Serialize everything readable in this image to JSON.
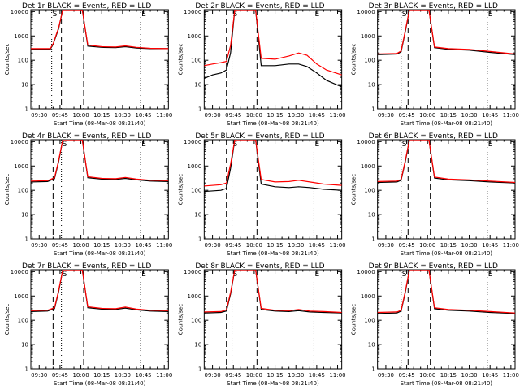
{
  "figure": {
    "rows": 3,
    "cols": 3,
    "colors": {
      "events": "#000000",
      "lld": "#ff0000",
      "background": "#ffffff"
    }
  },
  "chart_data": [
    {
      "type": "line",
      "title": "Det 1r BLACK = Events, RED = LLD",
      "xlabel": "Start Time (08-Mar-08 08:21:40)",
      "ylabel": "Counts/sec",
      "ytick_labels": [
        "1",
        "10",
        "100",
        "1000",
        "10000"
      ],
      "xtick_labels": [
        "09:30",
        "09:45",
        "10:00",
        "10:15",
        "10:30",
        "10:45",
        "11:00"
      ],
      "xlim": [
        "09:24",
        "11:03"
      ],
      "ylim": [
        1,
        12000
      ],
      "yscale": "log",
      "vlines_dashed": [
        "09:46",
        "10:02"
      ],
      "vlines_dotted": [
        "09:39",
        "10:43"
      ],
      "markers": [
        {
          "letter": "S",
          "x": "09:39"
        },
        {
          "letter": "E",
          "x": "10:43"
        }
      ],
      "series": [
        {
          "name": "Events",
          "color": "#000000",
          "x": [
            "09:24",
            "09:38",
            "09:40",
            "09:44",
            "09:47",
            "10:01",
            "10:05",
            "10:15",
            "10:25",
            "10:32",
            "10:40",
            "10:50",
            "11:03"
          ],
          "y": [
            280,
            280,
            450,
            2000,
            12000,
            12000,
            380,
            340,
            330,
            360,
            320,
            300,
            300
          ]
        },
        {
          "name": "LLD",
          "color": "#ff0000",
          "x": [
            "09:24",
            "09:38",
            "09:40",
            "09:44",
            "09:47",
            "10:01",
            "10:05",
            "10:15",
            "10:25",
            "10:32",
            "10:40",
            "10:50",
            "11:03"
          ],
          "y": [
            300,
            300,
            480,
            2200,
            12000,
            12000,
            420,
            360,
            350,
            390,
            340,
            310,
            300
          ]
        }
      ]
    },
    {
      "type": "line",
      "title": "Det 2r BLACK = Events, RED = LLD",
      "xlabel": "Start Time (08-Mar-08 08:21:40)",
      "ylabel": "Counts/sec",
      "ytick_labels": [
        "1",
        "10",
        "100",
        "1000",
        "10000"
      ],
      "xtick_labels": [
        "09:30",
        "09:45",
        "10:00",
        "10:15",
        "10:30",
        "10:45",
        "11:00"
      ],
      "xlim": [
        "09:24",
        "11:03"
      ],
      "ylim": [
        1,
        12000
      ],
      "yscale": "log",
      "vlines_dashed": [
        "09:40",
        "10:02"
      ],
      "vlines_dotted": [
        "09:44",
        "10:43"
      ],
      "markers": [
        {
          "letter": "S",
          "x": "09:44"
        },
        {
          "letter": "E",
          "x": "10:43"
        }
      ],
      "series": [
        {
          "name": "Events",
          "color": "#000000",
          "x": [
            "09:24",
            "09:30",
            "09:36",
            "09:40",
            "09:43",
            "09:46",
            "10:01",
            "10:05",
            "10:15",
            "10:25",
            "10:32",
            "10:38",
            "10:45",
            "10:52",
            "11:03"
          ],
          "y": [
            18,
            25,
            30,
            40,
            200,
            12000,
            12000,
            60,
            60,
            70,
            70,
            55,
            30,
            15,
            8
          ]
        },
        {
          "name": "LLD",
          "color": "#ff0000",
          "x": [
            "09:24",
            "09:30",
            "09:36",
            "09:40",
            "09:43",
            "09:46",
            "10:01",
            "10:05",
            "10:15",
            "10:25",
            "10:32",
            "10:38",
            "10:45",
            "10:52",
            "11:03"
          ],
          "y": [
            60,
            70,
            80,
            90,
            400,
            12000,
            12000,
            120,
            110,
            150,
            200,
            160,
            70,
            40,
            25
          ]
        }
      ]
    },
    {
      "type": "line",
      "title": "Det 3r BLACK = Events, RED = LLD",
      "xlabel": "Start Time (08-Mar-08 08:21:40)",
      "ylabel": "Counts/sec",
      "ytick_labels": [
        "1",
        "10",
        "100",
        "1000",
        "10000"
      ],
      "xtick_labels": [
        "09:30",
        "09:45",
        "10:00",
        "10:15",
        "10:30",
        "10:45",
        "11:00"
      ],
      "xlim": [
        "09:24",
        "11:03"
      ],
      "ylim": [
        1,
        12000
      ],
      "yscale": "log",
      "vlines_dashed": [
        "09:46",
        "10:02"
      ],
      "vlines_dotted": [
        "09:41",
        "10:43"
      ],
      "markers": [
        {
          "letter": "S",
          "x": "09:41"
        },
        {
          "letter": "E",
          "x": "10:43"
        }
      ],
      "series": [
        {
          "name": "Events",
          "color": "#000000",
          "x": [
            "09:24",
            "09:38",
            "09:41",
            "09:44",
            "09:47",
            "10:01",
            "10:05",
            "10:15",
            "10:30",
            "10:45",
            "11:03"
          ],
          "y": [
            170,
            180,
            220,
            1500,
            12000,
            12000,
            330,
            280,
            260,
            210,
            170
          ]
        },
        {
          "name": "LLD",
          "color": "#ff0000",
          "x": [
            "09:24",
            "09:38",
            "09:41",
            "09:44",
            "09:47",
            "10:01",
            "10:05",
            "10:15",
            "10:30",
            "10:45",
            "11:03"
          ],
          "y": [
            180,
            190,
            240,
            1700,
            12000,
            12000,
            350,
            300,
            280,
            230,
            180
          ]
        }
      ]
    },
    {
      "type": "line",
      "title": "Det 4r BLACK = Events, RED = LLD",
      "xlabel": "Start Time (08-Mar-08 08:21:40)",
      "ylabel": "Counts/sec",
      "ytick_labels": [
        "1",
        "10",
        "100",
        "1000",
        "10000"
      ],
      "xtick_labels": [
        "09:30",
        "09:45",
        "10:00",
        "10:15",
        "10:30",
        "10:45",
        "11:00"
      ],
      "xlim": [
        "09:24",
        "11:03"
      ],
      "ylim": [
        1,
        12000
      ],
      "yscale": "log",
      "vlines_dashed": [
        "09:40",
        "10:02"
      ],
      "vlines_dotted": [
        "09:46",
        "10:43"
      ],
      "markers": [
        {
          "letter": "S",
          "x": "09:46"
        },
        {
          "letter": "E",
          "x": "10:43"
        }
      ],
      "series": [
        {
          "name": "Events",
          "color": "#000000",
          "x": [
            "09:24",
            "09:36",
            "09:41",
            "09:44",
            "09:47",
            "10:01",
            "10:05",
            "10:15",
            "10:25",
            "10:32",
            "10:40",
            "10:50",
            "11:03"
          ],
          "y": [
            220,
            230,
            300,
            1500,
            12000,
            12000,
            330,
            290,
            280,
            310,
            270,
            240,
            230
          ]
        },
        {
          "name": "LLD",
          "color": "#ff0000",
          "x": [
            "09:24",
            "09:36",
            "09:41",
            "09:44",
            "09:47",
            "10:01",
            "10:05",
            "10:15",
            "10:25",
            "10:32",
            "10:40",
            "10:50",
            "11:03"
          ],
          "y": [
            240,
            250,
            330,
            1700,
            12000,
            12000,
            360,
            310,
            300,
            340,
            290,
            260,
            250
          ]
        }
      ]
    },
    {
      "type": "line",
      "title": "Det 5r BLACK = Events, RED = LLD",
      "xlabel": "Start Time (08-Mar-08 08:21:40)",
      "ylabel": "Counts/sec",
      "ytick_labels": [
        "1",
        "10",
        "100",
        "1000",
        "10000"
      ],
      "xtick_labels": [
        "09:30",
        "09:45",
        "10:00",
        "10:15",
        "10:30",
        "10:45",
        "11:00"
      ],
      "xlim": [
        "09:24",
        "11:03"
      ],
      "ylim": [
        1,
        12000
      ],
      "yscale": "log",
      "vlines_dashed": [
        "09:40",
        "10:02"
      ],
      "vlines_dotted": [
        "09:44",
        "10:43"
      ],
      "markers": [
        {
          "letter": "S",
          "x": "09:44"
        },
        {
          "letter": "E",
          "x": "10:43"
        }
      ],
      "series": [
        {
          "name": "Events",
          "color": "#000000",
          "x": [
            "09:24",
            "09:36",
            "09:40",
            "09:43",
            "09:46",
            "10:01",
            "10:05",
            "10:15",
            "10:25",
            "10:32",
            "10:40",
            "10:50",
            "11:03"
          ],
          "y": [
            90,
            100,
            120,
            800,
            12000,
            12000,
            180,
            140,
            130,
            140,
            130,
            110,
            100
          ]
        },
        {
          "name": "LLD",
          "color": "#ff0000",
          "x": [
            "09:24",
            "09:36",
            "09:40",
            "09:43",
            "09:46",
            "10:01",
            "10:05",
            "10:15",
            "10:25",
            "10:32",
            "10:40",
            "10:50",
            "11:03"
          ],
          "y": [
            150,
            170,
            200,
            1200,
            12000,
            12000,
            280,
            220,
            230,
            260,
            220,
            180,
            160
          ]
        }
      ]
    },
    {
      "type": "line",
      "title": "Det 6r BLACK = Events, RED = LLD",
      "xlabel": "Start Time (08-Mar-08 08:21:40)",
      "ylabel": "Counts/sec",
      "ytick_labels": [
        "1",
        "10",
        "100",
        "1000",
        "10000"
      ],
      "xtick_labels": [
        "09:30",
        "09:45",
        "10:00",
        "10:15",
        "10:30",
        "10:45",
        "11:00"
      ],
      "xlim": [
        "09:24",
        "11:03"
      ],
      "ylim": [
        1,
        12000
      ],
      "yscale": "log",
      "vlines_dashed": [
        "09:46",
        "10:02"
      ],
      "vlines_dotted": [
        "09:41",
        "10:43"
      ],
      "markers": [
        {
          "letter": "S",
          "x": "09:41"
        },
        {
          "letter": "E",
          "x": "10:43"
        }
      ],
      "series": [
        {
          "name": "Events",
          "color": "#000000",
          "x": [
            "09:24",
            "09:38",
            "09:41",
            "09:44",
            "09:47",
            "10:01",
            "10:05",
            "10:15",
            "10:30",
            "10:45",
            "11:03"
          ],
          "y": [
            210,
            220,
            260,
            1500,
            12000,
            12000,
            320,
            270,
            250,
            220,
            200
          ]
        },
        {
          "name": "LLD",
          "color": "#ff0000",
          "x": [
            "09:24",
            "09:38",
            "09:41",
            "09:44",
            "09:47",
            "10:01",
            "10:05",
            "10:15",
            "10:30",
            "10:45",
            "11:03"
          ],
          "y": [
            230,
            240,
            280,
            1700,
            12000,
            12000,
            350,
            290,
            270,
            240,
            210
          ]
        }
      ]
    },
    {
      "type": "line",
      "title": "Det 7r BLACK = Events, RED = LLD",
      "xlabel": "Start Time (08-Mar-08 08:21:40)",
      "ylabel": "Counts/sec",
      "ytick_labels": [
        "1",
        "10",
        "100",
        "1000",
        "10000"
      ],
      "xtick_labels": [
        "09:30",
        "09:45",
        "10:00",
        "10:15",
        "10:30",
        "10:45",
        "11:00"
      ],
      "xlim": [
        "09:24",
        "11:03"
      ],
      "ylim": [
        1,
        12000
      ],
      "yscale": "log",
      "vlines_dashed": [
        "09:40",
        "10:02"
      ],
      "vlines_dotted": [
        "09:46",
        "10:43"
      ],
      "markers": [
        {
          "letter": "S",
          "x": "09:46"
        },
        {
          "letter": "E",
          "x": "10:43"
        }
      ],
      "series": [
        {
          "name": "Events",
          "color": "#000000",
          "x": [
            "09:24",
            "09:36",
            "09:41",
            "09:44",
            "09:47",
            "10:01",
            "10:05",
            "10:15",
            "10:25",
            "10:32",
            "10:40",
            "10:50",
            "11:03"
          ],
          "y": [
            230,
            240,
            300,
            1500,
            12000,
            12000,
            330,
            290,
            280,
            320,
            270,
            240,
            230
          ]
        },
        {
          "name": "LLD",
          "color": "#ff0000",
          "x": [
            "09:24",
            "09:36",
            "09:41",
            "09:44",
            "09:47",
            "10:01",
            "10:05",
            "10:15",
            "10:25",
            "10:32",
            "10:40",
            "10:50",
            "11:03"
          ],
          "y": [
            250,
            260,
            330,
            1700,
            12000,
            12000,
            360,
            310,
            300,
            350,
            290,
            260,
            250
          ]
        }
      ]
    },
    {
      "type": "line",
      "title": "Det 8r BLACK = Events, RED = LLD",
      "xlabel": "Start Time (08-Mar-08 08:21:40)",
      "ylabel": "Counts/sec",
      "ytick_labels": [
        "1",
        "10",
        "100",
        "1000",
        "10000"
      ],
      "xtick_labels": [
        "09:30",
        "09:45",
        "10:00",
        "10:15",
        "10:30",
        "10:45",
        "11:00"
      ],
      "xlim": [
        "09:24",
        "11:03"
      ],
      "ylim": [
        1,
        12000
      ],
      "yscale": "log",
      "vlines_dashed": [
        "09:40",
        "10:02"
      ],
      "vlines_dotted": [
        "09:44",
        "10:43"
      ],
      "markers": [
        {
          "letter": "S",
          "x": "09:44"
        },
        {
          "letter": "E",
          "x": "10:43"
        }
      ],
      "series": [
        {
          "name": "Events",
          "color": "#000000",
          "x": [
            "09:24",
            "09:36",
            "09:40",
            "09:43",
            "09:46",
            "10:01",
            "10:05",
            "10:15",
            "10:25",
            "10:32",
            "10:40",
            "10:50",
            "11:03"
          ],
          "y": [
            200,
            210,
            240,
            1200,
            12000,
            12000,
            280,
            240,
            230,
            250,
            220,
            210,
            200
          ]
        },
        {
          "name": "LLD",
          "color": "#ff0000",
          "x": [
            "09:24",
            "09:36",
            "09:40",
            "09:43",
            "09:46",
            "10:01",
            "10:05",
            "10:15",
            "10:25",
            "10:32",
            "10:40",
            "10:50",
            "11:03"
          ],
          "y": [
            220,
            230,
            270,
            1400,
            12000,
            12000,
            310,
            260,
            250,
            280,
            240,
            230,
            210
          ]
        }
      ]
    },
    {
      "type": "line",
      "title": "Det 9r BLACK = Events, RED = LLD",
      "xlabel": "Start Time (08-Mar-08 08:21:40)",
      "ylabel": "Counts/sec",
      "ytick_labels": [
        "1",
        "10",
        "100",
        "1000",
        "10000"
      ],
      "xtick_labels": [
        "09:30",
        "09:45",
        "10:00",
        "10:15",
        "10:30",
        "10:45",
        "11:00"
      ],
      "xlim": [
        "09:24",
        "11:03"
      ],
      "ylim": [
        1,
        12000
      ],
      "yscale": "log",
      "vlines_dashed": [
        "09:46",
        "10:02"
      ],
      "vlines_dotted": [
        "09:41",
        "10:43"
      ],
      "markers": [
        {
          "letter": "S",
          "x": "09:41"
        },
        {
          "letter": "E",
          "x": "10:43"
        }
      ],
      "series": [
        {
          "name": "Events",
          "color": "#000000",
          "x": [
            "09:24",
            "09:38",
            "09:41",
            "09:44",
            "09:47",
            "10:01",
            "10:05",
            "10:15",
            "10:30",
            "10:45",
            "11:03"
          ],
          "y": [
            190,
            200,
            240,
            1400,
            12000,
            12000,
            300,
            260,
            240,
            210,
            190
          ]
        },
        {
          "name": "LLD",
          "color": "#ff0000",
          "x": [
            "09:24",
            "09:38",
            "09:41",
            "09:44",
            "09:47",
            "10:01",
            "10:05",
            "10:15",
            "10:30",
            "10:45",
            "11:03"
          ],
          "y": [
            210,
            220,
            260,
            1600,
            12000,
            12000,
            330,
            280,
            260,
            230,
            200
          ]
        }
      ]
    }
  ]
}
